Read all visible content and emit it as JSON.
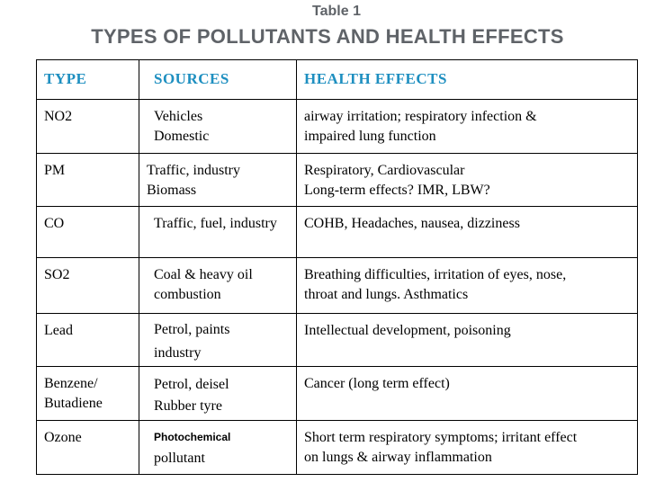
{
  "caption": {
    "label": "Table 1",
    "title": "TYPES OF POLLUTANTS AND HEALTH EFFECTS"
  },
  "table": {
    "headers": [
      "TYPE",
      "SOURCES",
      "HEALTH EFFECTS"
    ],
    "rows": [
      {
        "type": [
          "NO2"
        ],
        "sources": [
          "Vehicles",
          "Domestic"
        ],
        "effects": [
          "airway irritation; respiratory infection &",
          "impaired lung function"
        ]
      },
      {
        "type": [
          "PM"
        ],
        "sources": [
          "Traffic, industry",
          "Biomass"
        ],
        "effects": [
          "Respiratory, Cardiovascular",
          "Long-term effects? IMR, LBW?"
        ]
      },
      {
        "type": [
          "CO"
        ],
        "sources": [
          "Traffic, fuel, industry"
        ],
        "effects": [
          "COHB, Headaches, nausea, dizziness"
        ]
      },
      {
        "type": [
          "SO2"
        ],
        "sources": [
          "Coal & heavy oil",
          "combustion"
        ],
        "effects": [
          "Breathing difficulties, irritation of eyes, nose,",
          "throat and lungs. Asthmatics"
        ]
      },
      {
        "type": [
          "Lead"
        ],
        "sources": [
          "Petrol, paints",
          "industry"
        ],
        "effects": [
          "Intellectual development, poisoning"
        ]
      },
      {
        "type": [
          "Benzene/",
          "Butadiene"
        ],
        "sources": [
          "Petrol, deisel",
          "Rubber tyre"
        ],
        "effects": [
          "Cancer (long term effect)"
        ]
      },
      {
        "type": [
          "Ozone"
        ],
        "sources": [
          "Photochemical",
          "pollutant"
        ],
        "effects": [
          "Short term respiratory symptoms; irritant effect",
          "on lungs & airway inflammation"
        ]
      }
    ]
  },
  "colors": {
    "header_text": "#1e8fc0",
    "caption_text": "#5f6368"
  }
}
